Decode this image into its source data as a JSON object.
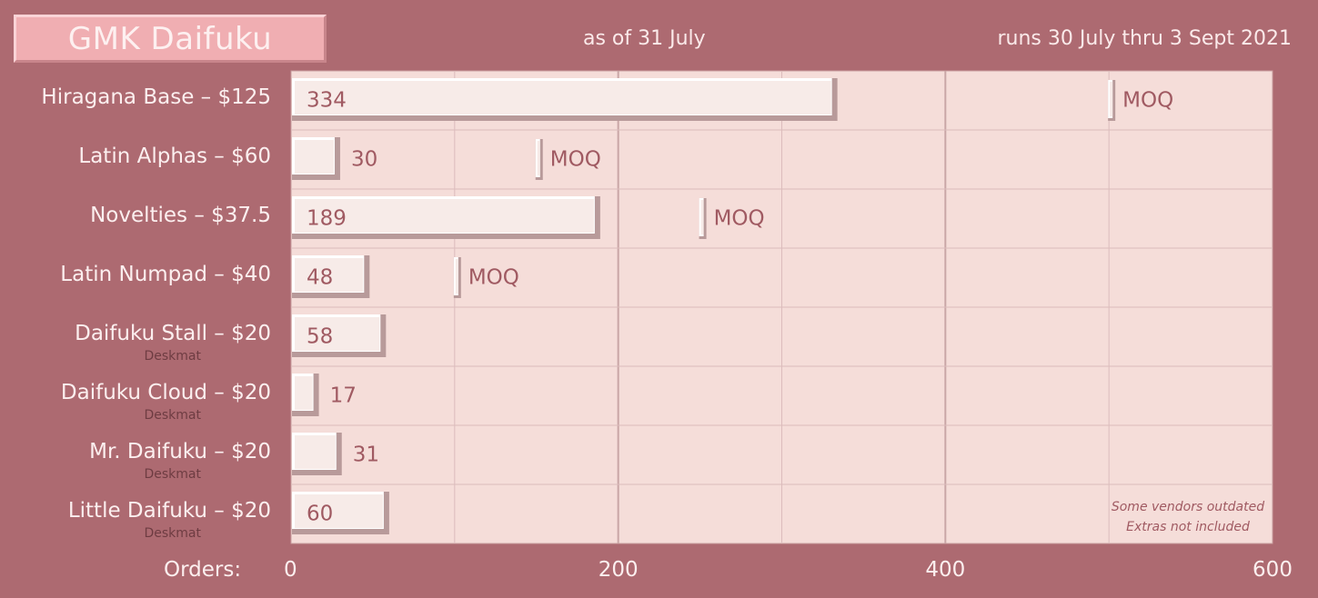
{
  "header": {
    "title": "GMK Daifuku",
    "as_of": "as of 31 July",
    "runs": "runs 30 July thru 3 Sept 2021"
  },
  "colors": {
    "background": "#ad6a71",
    "plot_bg": "#f5ddd9",
    "bar_face": "#f7ebe8",
    "bar_shadow": "#b89a9a",
    "value_text": "#a05a62",
    "title_box": "#f0aeb2"
  },
  "chart_data": {
    "type": "bar",
    "orientation": "horizontal",
    "categories": [
      "Hiragana Base – $125",
      "Latin Alphas – $60",
      "Novelties – $37.5",
      "Latin Numpad – $40",
      "Daifuku Stall – $20",
      "Daifuku Cloud – $20",
      "Mr. Daifuku – $20",
      "Little Daifuku – $20"
    ],
    "subtitles": [
      "",
      "",
      "",
      "",
      "Deskmat",
      "Deskmat",
      "Deskmat",
      "Deskmat"
    ],
    "values": [
      334,
      30,
      189,
      48,
      58,
      17,
      31,
      60
    ],
    "moq": [
      500,
      150,
      250,
      100,
      null,
      null,
      null,
      null
    ],
    "moq_label": "MOQ",
    "xlabel": "Orders:",
    "xlim": [
      0,
      600
    ],
    "xticks": [
      0,
      200,
      400,
      600
    ],
    "grid": true,
    "notes": [
      "Some vendors outdated",
      "Extras not included"
    ]
  }
}
